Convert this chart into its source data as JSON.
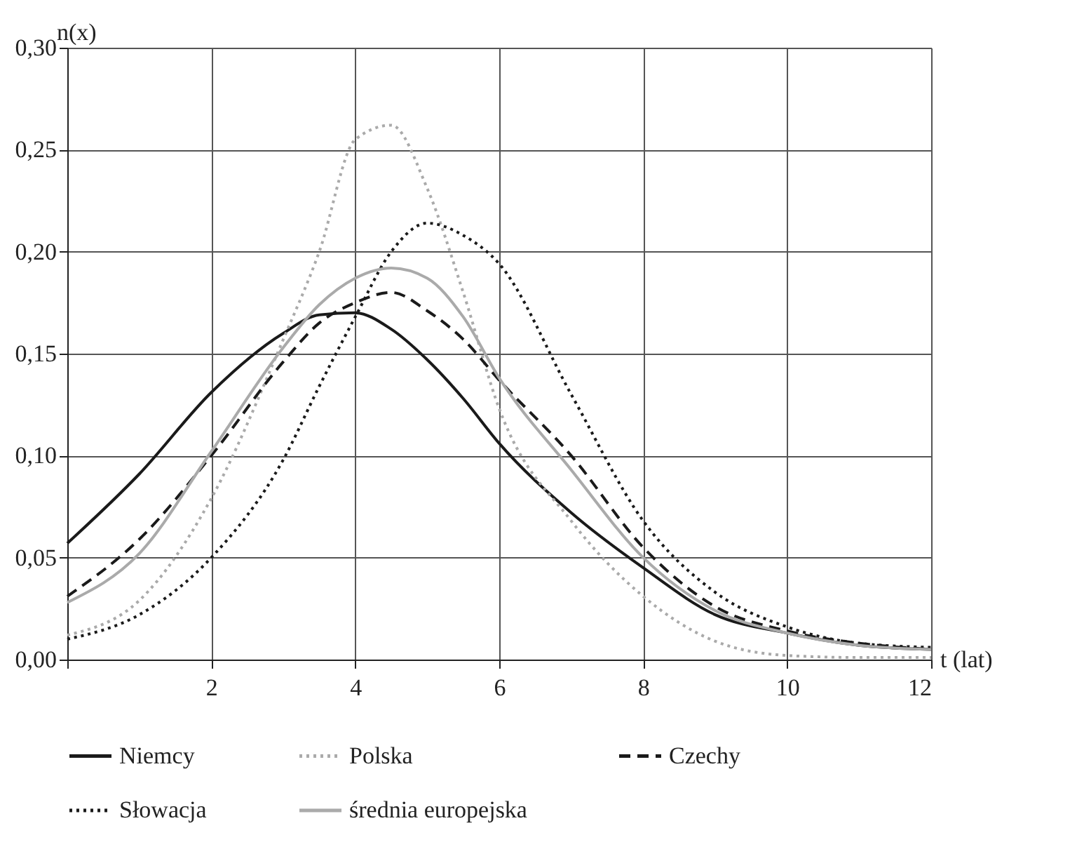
{
  "chart_data": {
    "type": "line",
    "xlabel": "t (lat)",
    "ylabel": "n(x)",
    "x": [
      0,
      1,
      2,
      3,
      3.5,
      4,
      4.5,
      5,
      5.5,
      6,
      7,
      8,
      9,
      10,
      11,
      12
    ],
    "series": [
      {
        "name": "Niemcy",
        "color": "#1a1a1a",
        "line_style": "solid",
        "values": [
          0.057,
          0.091,
          0.131,
          0.16,
          0.169,
          0.17,
          0.162,
          0.147,
          0.128,
          0.106,
          0.072,
          0.045,
          0.022,
          0.013,
          0.007,
          0.005
        ]
      },
      {
        "name": "Polska",
        "color": "#aaaaaa",
        "line_style": "dotted",
        "values": [
          0.012,
          0.029,
          0.079,
          0.157,
          0.2,
          0.255,
          0.262,
          0.231,
          0.18,
          0.123,
          0.068,
          0.031,
          0.009,
          0.002,
          0.001,
          0.001
        ]
      },
      {
        "name": "Czechy",
        "color": "#1a1a1a",
        "line_style": "dashed",
        "values": [
          0.031,
          0.059,
          0.1,
          0.146,
          0.165,
          0.175,
          0.18,
          0.171,
          0.157,
          0.137,
          0.1,
          0.055,
          0.026,
          0.014,
          0.008,
          0.005
        ]
      },
      {
        "name": "Słowacja",
        "color": "#1a1a1a",
        "line_style": "dotted",
        "values": [
          0.01,
          0.022,
          0.05,
          0.098,
          0.134,
          0.168,
          0.2,
          0.214,
          0.208,
          0.194,
          0.13,
          0.068,
          0.033,
          0.016,
          0.008,
          0.006
        ]
      },
      {
        "name": "średnia europejska",
        "color": "#aaaaaa",
        "line_style": "solid",
        "values": [
          0.028,
          0.052,
          0.102,
          0.153,
          0.174,
          0.187,
          0.192,
          0.187,
          0.168,
          0.138,
          0.093,
          0.05,
          0.024,
          0.013,
          0.007,
          0.005
        ]
      }
    ],
    "xlim": [
      0,
      12
    ],
    "xticks": [
      {
        "value": 0,
        "label": null
      },
      2,
      4,
      6,
      8,
      10,
      12
    ],
    "ylim": [
      0,
      0.3
    ],
    "yticks": [
      {
        "value": 0,
        "label": "0,00"
      },
      {
        "value": 0.05,
        "label": "0,05"
      },
      {
        "value": 0.1,
        "label": "0,10"
      },
      {
        "value": 0.15,
        "label": "0,15"
      },
      {
        "value": 0.2,
        "label": "0,20"
      },
      {
        "value": 0.25,
        "label": "0,25"
      },
      {
        "value": 0.3,
        "label": "0,30"
      }
    ],
    "grid": true,
    "legend": "bottom",
    "marker": "none"
  }
}
